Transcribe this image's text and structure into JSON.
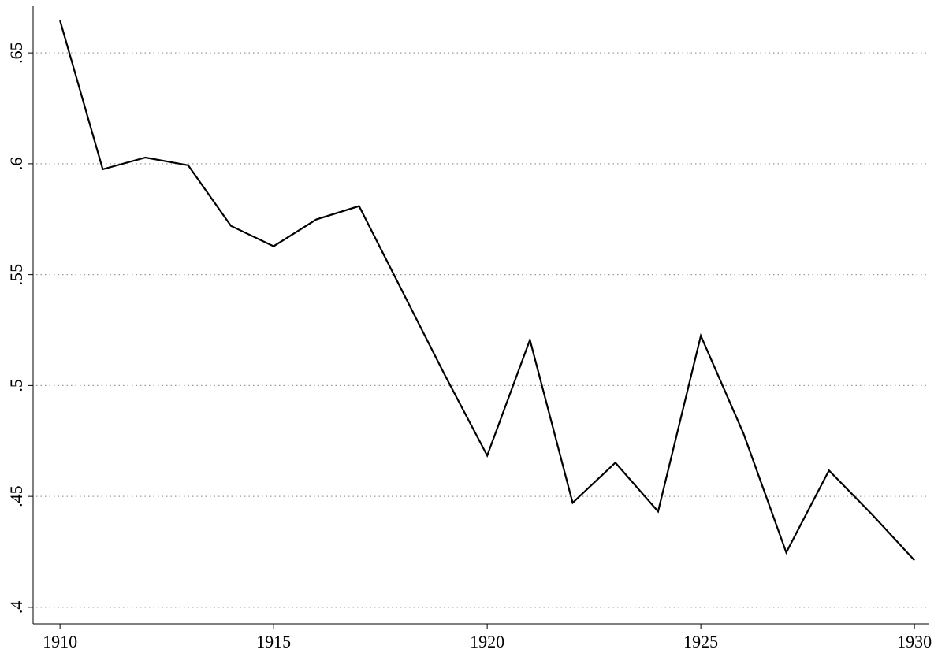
{
  "chart_data": {
    "type": "line",
    "x": [
      1910,
      1911,
      1912,
      1913,
      1914,
      1915,
      1916,
      1917,
      1918,
      1919,
      1920,
      1921,
      1922,
      1923,
      1924,
      1925,
      1926,
      1927,
      1928,
      1929,
      1930
    ],
    "series": [
      {
        "color": "#000000",
        "values": [
          0.6646,
          0.5975,
          0.6028,
          0.5993,
          0.572,
          0.5628,
          0.5749,
          0.5809,
          0.543,
          0.505,
          0.4684,
          0.5206,
          0.4471,
          0.4652,
          0.4432,
          0.5224,
          0.4783,
          0.4247,
          0.4617,
          0.442,
          0.4212
        ]
      }
    ],
    "xlim": [
      1909.37,
      1930.33
    ],
    "ylim": [
      0.3925,
      0.671
    ],
    "xticks": [
      1910,
      1915,
      1920,
      1925,
      1930
    ],
    "yticks": [
      {
        "value": 0.4,
        "label": ".4"
      },
      {
        "value": 0.45,
        "label": ".45"
      },
      {
        "value": 0.5,
        "label": ".5"
      },
      {
        "value": 0.55,
        "label": ".55"
      },
      {
        "value": 0.6,
        "label": ".6"
      },
      {
        "value": 0.65,
        "label": ".65"
      }
    ],
    "grid": true
  }
}
